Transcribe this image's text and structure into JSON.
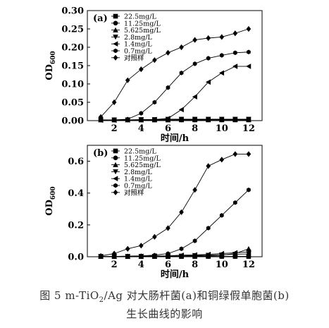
{
  "chart_data": [
    {
      "type": "line",
      "panel_label": "(a)",
      "xlabel": "时间/h",
      "ylabel": "OD",
      "ylabel_sub": "600",
      "xlim": [
        0,
        13
      ],
      "ylim": [
        0,
        0.3
      ],
      "x_ticks": [
        2,
        4,
        6,
        8,
        10,
        12
      ],
      "x_tick_labels": [
        "2",
        "4",
        "6",
        "8",
        "10",
        "12"
      ],
      "y_ticks": [
        0.0,
        0.05,
        0.1,
        0.15,
        0.2,
        0.25,
        0.3
      ],
      "y_tick_labels": [
        "0.00",
        "0.05",
        "0.10",
        "0.15",
        "0.20",
        "0.25",
        "0.30"
      ],
      "grid": false,
      "legend_position": "top-left",
      "x": [
        1,
        2,
        3,
        4,
        5,
        6,
        7,
        8,
        9,
        10,
        11,
        12
      ],
      "series": [
        {
          "name": "22.5mg/L",
          "marker": "square",
          "values": [
            0.002,
            0.002,
            0.002,
            0.002,
            0.002,
            0.002,
            0.002,
            0.002,
            0.002,
            0.002,
            0.002,
            0.002
          ]
        },
        {
          "name": "11.25mg/L",
          "marker": "circle",
          "values": [
            0.002,
            0.002,
            0.002,
            0.002,
            0.002,
            0.002,
            0.002,
            0.002,
            0.002,
            0.002,
            0.002,
            0.002
          ]
        },
        {
          "name": "5.625mg/L",
          "marker": "triangle-up",
          "values": [
            0.002,
            0.002,
            0.002,
            0.002,
            0.002,
            0.002,
            0.003,
            0.003,
            0.003,
            0.003,
            0.003,
            0.003
          ]
        },
        {
          "name": "2.8mg/L",
          "marker": "triangle-down",
          "values": [
            0.002,
            0.002,
            0.002,
            0.003,
            0.003,
            0.004,
            0.004,
            0.004,
            0.004,
            0.004,
            0.004,
            0.004
          ]
        },
        {
          "name": "1.4mg/L",
          "marker": "triangle-left",
          "values": [
            0.001,
            0.001,
            0.002,
            0.002,
            0.003,
            0.006,
            0.03,
            0.065,
            0.105,
            0.13,
            0.148,
            0.148
          ]
        },
        {
          "name": "0.7mg/L",
          "marker": "hexagon",
          "values": [
            0.002,
            0.002,
            0.004,
            0.02,
            0.05,
            0.09,
            0.13,
            0.155,
            0.17,
            0.178,
            0.185,
            0.187
          ]
        },
        {
          "name": "对照样",
          "marker": "diamond",
          "values": [
            0.01,
            0.05,
            0.11,
            0.14,
            0.165,
            0.185,
            0.2,
            0.22,
            0.225,
            0.228,
            0.238,
            0.25
          ]
        }
      ]
    },
    {
      "type": "line",
      "panel_label": "(b)",
      "xlabel": "时间/h",
      "ylabel": "OD",
      "ylabel_sub": "600",
      "xlim": [
        0,
        13
      ],
      "ylim": [
        0,
        0.7
      ],
      "x_ticks": [
        2,
        4,
        6,
        8,
        10,
        12
      ],
      "x_tick_labels": [
        "2",
        "4",
        "6",
        "8",
        "10",
        "12"
      ],
      "y_ticks": [
        0.0,
        0.2,
        0.4,
        0.6
      ],
      "y_tick_labels": [
        "0.0",
        "0.2",
        "0.4",
        "0.6"
      ],
      "grid": false,
      "legend_position": "top-left",
      "x": [
        1,
        2,
        3,
        4,
        5,
        6,
        7,
        8,
        9,
        10,
        11,
        12
      ],
      "series": [
        {
          "name": "22.5mg/L",
          "marker": "square",
          "values": [
            0.002,
            0.002,
            0.002,
            0.002,
            0.002,
            0.002,
            0.002,
            0.002,
            0.002,
            0.002,
            0.002,
            0.002
          ]
        },
        {
          "name": "11.25mg/L",
          "marker": "circle",
          "values": [
            0.002,
            0.002,
            0.002,
            0.002,
            0.002,
            0.002,
            0.002,
            0.002,
            0.002,
            0.002,
            0.002,
            0.002
          ]
        },
        {
          "name": "5.625mg/L",
          "marker": "triangle-up",
          "values": [
            0.002,
            0.002,
            0.002,
            0.002,
            0.002,
            0.002,
            0.003,
            0.004,
            0.006,
            0.01,
            0.02,
            0.05
          ]
        },
        {
          "name": "2.8mg/L",
          "marker": "triangle-down",
          "values": [
            0.002,
            0.002,
            0.002,
            0.002,
            0.003,
            0.004,
            0.005,
            0.008,
            0.01,
            0.012,
            0.016,
            0.018
          ]
        },
        {
          "name": "1.4mg/L",
          "marker": "triangle-left",
          "values": [
            0.002,
            0.002,
            0.002,
            0.003,
            0.005,
            0.006,
            0.01,
            0.012,
            0.015,
            0.02,
            0.025,
            0.03
          ]
        },
        {
          "name": "0.7mg/L",
          "marker": "hexagon",
          "values": [
            0.002,
            0.002,
            0.004,
            0.006,
            0.01,
            0.02,
            0.05,
            0.1,
            0.18,
            0.26,
            0.34,
            0.42
          ]
        },
        {
          "name": "对照样",
          "marker": "diamond",
          "values": [
            0.005,
            0.02,
            0.05,
            0.07,
            0.125,
            0.18,
            0.28,
            0.42,
            0.57,
            0.61,
            0.645,
            0.645
          ]
        }
      ]
    }
  ],
  "caption": {
    "line1_prefix": "图 5   m-TiO",
    "line1_sub": "2",
    "line1_suffix": "/Ag 对大肠杆菌(a)和铜绿假单胞菌(b)",
    "line2": "生长曲线的影响"
  }
}
